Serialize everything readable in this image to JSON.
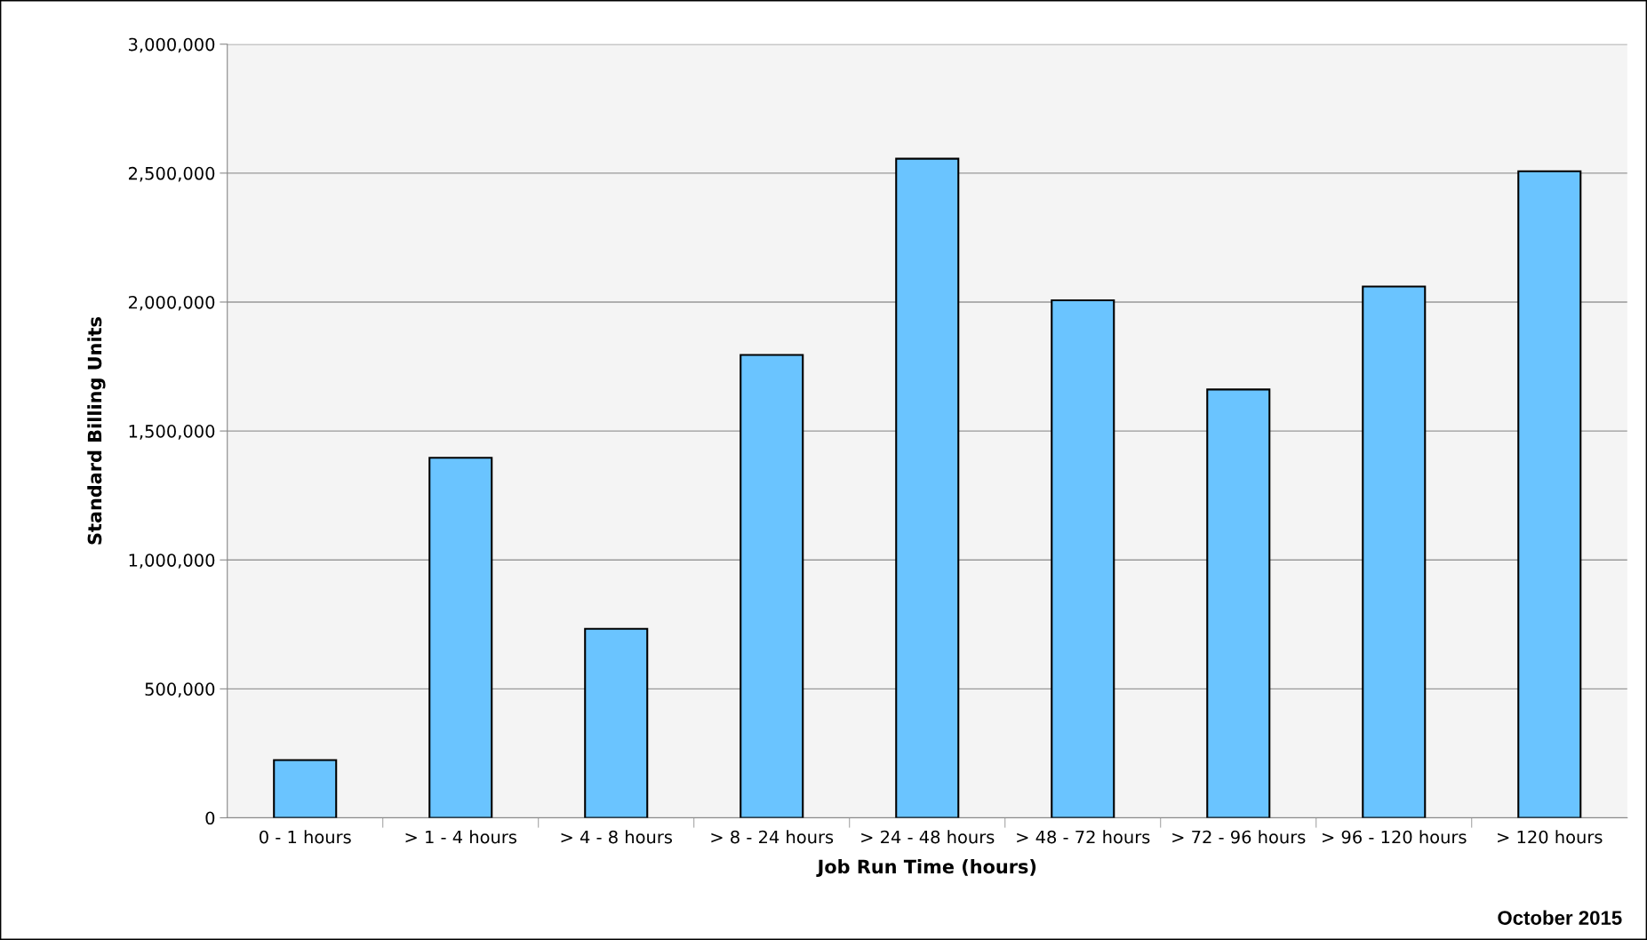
{
  "chart_data": {
    "type": "bar",
    "xlabel": "Job Run Time (hours)",
    "ylabel": "Standard Billing Units",
    "categories": [
      "0 - 1 hours",
      "> 1 - 4 hours",
      "> 4 - 8 hours",
      "> 8 - 24 hours",
      "> 24 - 48 hours",
      "> 48 - 72 hours",
      "> 72 - 96 hours",
      "> 96 - 120 hours",
      "> 120 hours"
    ],
    "values": [
      224000,
      1396000,
      733000,
      1795000,
      2556000,
      2007000,
      1661000,
      2060000,
      2507000
    ],
    "color": "#6ac4ff",
    "ylim": [
      0,
      3000000
    ],
    "yticks": [
      0,
      {
        "value": 500000,
        "label": "500,000"
      },
      {
        "value": 1000000,
        "label": "1,000,000"
      },
      {
        "value": 1500000,
        "label": "1,500,000"
      },
      {
        "value": 2000000,
        "label": "2,000,000"
      },
      {
        "value": 2500000,
        "label": "2,500,000"
      },
      {
        "value": 3000000,
        "label": "3,000,000"
      }
    ],
    "grid": "y",
    "annotations": [
      "October 2015"
    ]
  }
}
